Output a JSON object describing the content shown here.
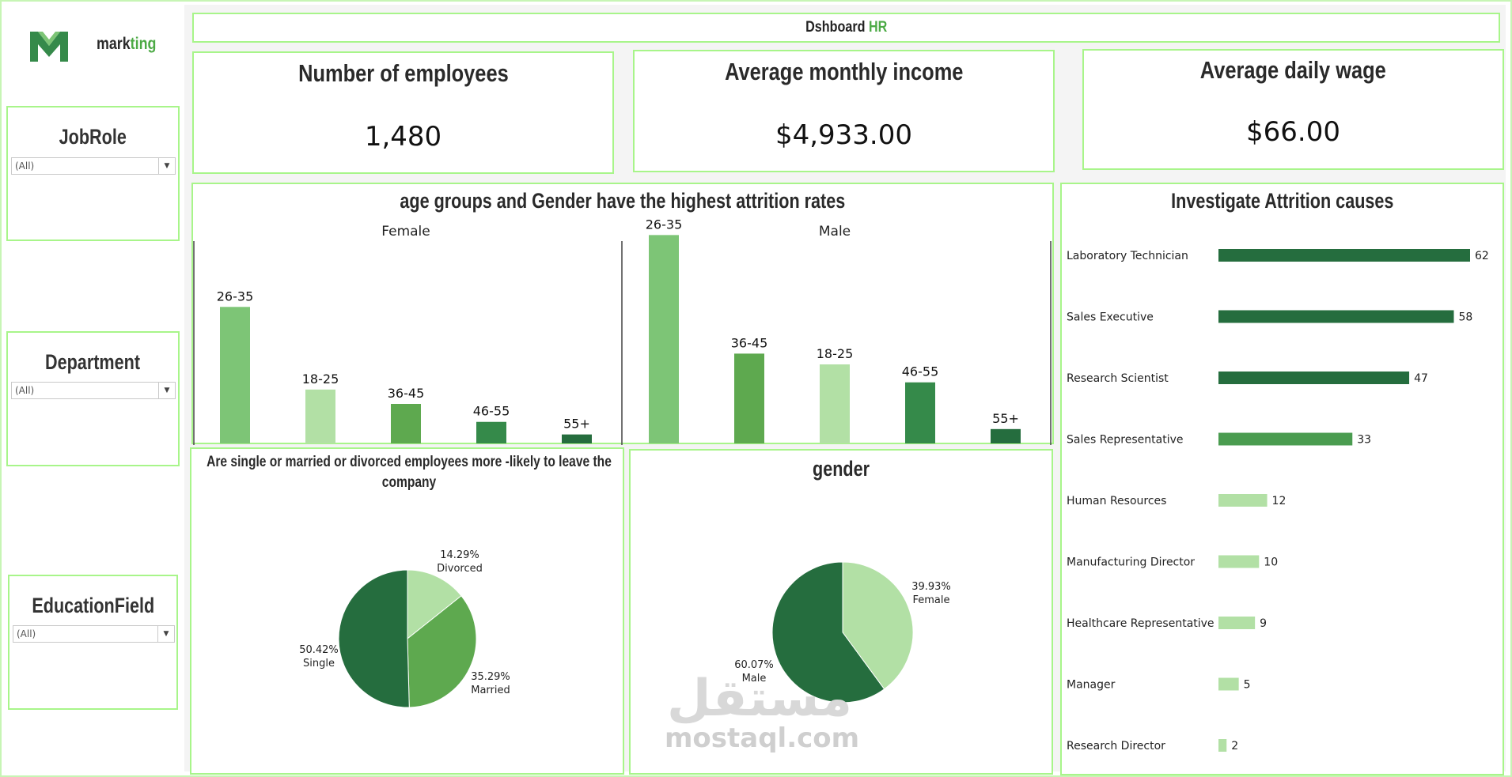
{
  "header": {
    "title_main": "Dshboard",
    "title_accent": "HR"
  },
  "brand": {
    "name_main": "mark",
    "name_accent": "ting",
    "logo_icon": "m-logo-icon"
  },
  "filters": [
    {
      "title": "JobRole",
      "value": "(All)"
    },
    {
      "title": "Department",
      "value": "(All)"
    },
    {
      "title": "EducationField",
      "value": "(All)"
    }
  ],
  "kpis": [
    {
      "title": "Number of employees",
      "value": "1,480"
    },
    {
      "title": "Average monthly income",
      "value": "$4,933.00"
    },
    {
      "title": "Average daily wage",
      "value": "$66.00"
    }
  ],
  "watermark": {
    "arabic": "مستقل",
    "latin": "mostaql.com"
  },
  "colors": {
    "darkest": "#256d3e",
    "dark": "#358a4a",
    "mid": "#5ea94f",
    "light": "#7dc576",
    "pale": "#b2e0a5",
    "accent": "#4caa45",
    "border": "#a8f58a"
  },
  "chart_data": [
    {
      "id": "age-gender",
      "type": "bar",
      "title": "age groups and Gender have the highest attrition rates",
      "panels": [
        {
          "name": "Female",
          "categories": [
            "26-35",
            "18-25",
            "36-45",
            "46-55",
            "55+"
          ],
          "values": [
            38,
            15,
            11,
            6,
            2.5
          ],
          "colors": [
            "#7dc576",
            "#b2e0a5",
            "#5ea94f",
            "#358a4a",
            "#256d3e"
          ]
        },
        {
          "name": "Male",
          "categories": [
            "26-35",
            "36-45",
            "18-25",
            "46-55",
            "55+"
          ],
          "values": [
            58,
            25,
            22,
            17,
            4
          ],
          "colors": [
            "#7dc576",
            "#5ea94f",
            "#b2e0a5",
            "#358a4a",
            "#256d3e"
          ]
        }
      ],
      "ylim": [
        0,
        66
      ]
    },
    {
      "id": "attrition-causes",
      "type": "bar",
      "orientation": "horizontal",
      "title": "Investigate Attrition causes",
      "categories": [
        "Laboratory Technician",
        "Sales Executive",
        "Research Scientist",
        "Sales Representative",
        "Human Resources",
        "Manufacturing Director",
        "Healthcare Representative",
        "Manager",
        "Research Director"
      ],
      "values": [
        62,
        58,
        47,
        33,
        12,
        10,
        9,
        5,
        2
      ],
      "colors": [
        "#256d3e",
        "#256d3e",
        "#256d3e",
        "#4a9c50",
        "#b2e0a5",
        "#b2e0a5",
        "#b2e0a5",
        "#b2e0a5",
        "#b2e0a5"
      ],
      "xlim": [
        0,
        62
      ]
    },
    {
      "id": "marital",
      "type": "pie",
      "title": "Are single or married or divorced employees more -likely to leave the company",
      "slices": [
        {
          "pct_label": "14.29%",
          "label": "Divorced",
          "value": 14.29,
          "color": "#b2e0a5"
        },
        {
          "pct_label": "35.29%",
          "label": "Married",
          "value": 35.29,
          "color": "#5ea94f"
        },
        {
          "pct_label": "50.42%",
          "label": "Single",
          "value": 50.42,
          "color": "#256d3e"
        }
      ]
    },
    {
      "id": "gender",
      "type": "pie",
      "title": "gender",
      "slices": [
        {
          "pct_label": "39.93%",
          "label": "Female",
          "value": 39.93,
          "color": "#b2e0a5"
        },
        {
          "pct_label": "60.07%",
          "label": "Male",
          "value": 60.07,
          "color": "#256d3e"
        }
      ]
    }
  ]
}
